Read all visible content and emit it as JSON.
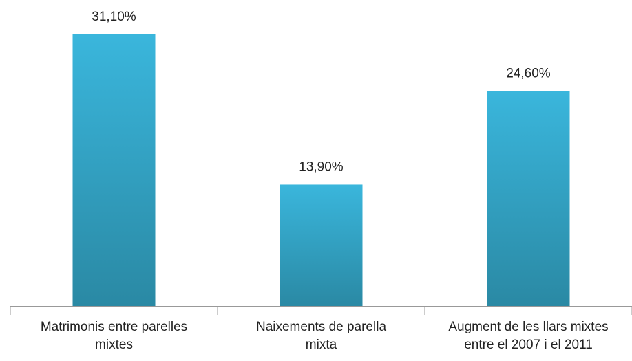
{
  "chart_data": {
    "type": "bar",
    "categories": [
      "Matrimonis entre parelles\nmixtes",
      "Naixements de parella\nmixta",
      "Augment de les llars mixtes\nentre el 2007 i el 2011"
    ],
    "values": [
      31.1,
      13.9,
      24.6
    ],
    "value_labels": [
      "31,10%",
      "13,90%",
      "24,60%"
    ],
    "color": "#36aed3"
  }
}
